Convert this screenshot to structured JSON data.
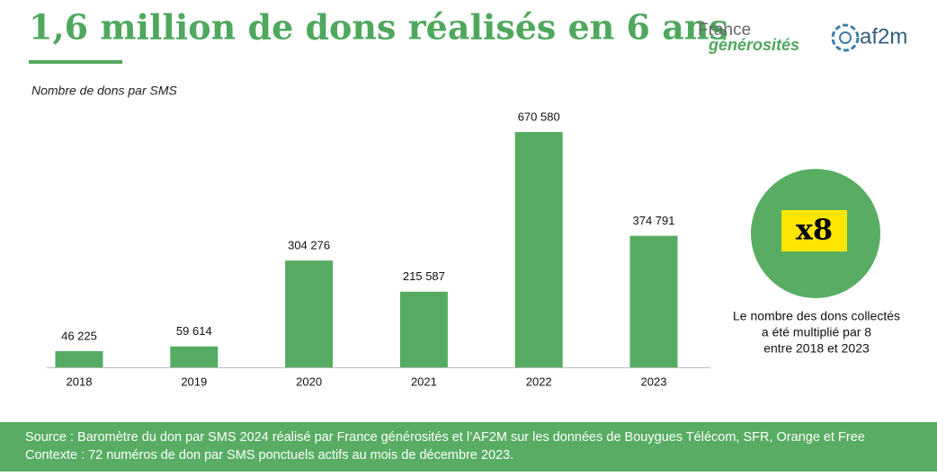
{
  "chart_data": {
    "type": "bar",
    "title": "1,6 million de dons réalisés en 6 ans",
    "subtitle": "Nombre de dons par SMS",
    "categories": [
      "2018",
      "2019",
      "2020",
      "2021",
      "2022",
      "2023"
    ],
    "values": [
      46225,
      59614,
      304276,
      215587,
      670580,
      374791
    ],
    "value_labels": [
      "46 225",
      "59 614",
      "304 276",
      "215 587",
      "670 580",
      "374 791"
    ],
    "color": "#55ab62"
  },
  "logos": [
    "France",
    "générosités",
    "af2m"
  ],
  "highlight": {
    "badge": "x8",
    "caption": [
      "Le nombre des dons collectés",
      "a été multiplié par 8",
      "entre 2018 et 2023"
    ]
  },
  "footer": {
    "lines": [
      "Source : Baromètre du don par SMS 2024 réalisé par France générosités et l’AF2M sur les données de Bouygues Télécom, SFR, Orange et Free",
      "Contexte : 72 numéros de don par SMS ponctuels actifs au mois de décembre 2023."
    ]
  }
}
